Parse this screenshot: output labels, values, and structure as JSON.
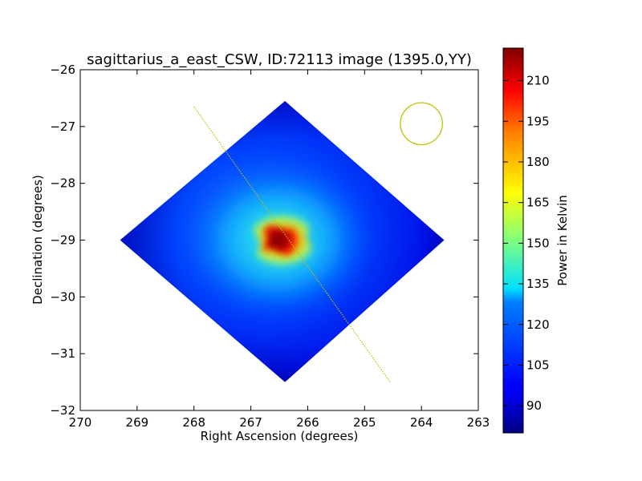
{
  "chart_data": {
    "type": "heatmap",
    "title": "sagittarius_a_east_CSW, ID:72113 image (1395.0,YY)",
    "xlabel": "Right Ascension (degrees)",
    "ylabel": "Declination (degrees)",
    "xlim": [
      270,
      263
    ],
    "ylim": [
      -32,
      -26
    ],
    "x_ticks": [
      "270",
      "269",
      "268",
      "267",
      "266",
      "265",
      "264",
      "263"
    ],
    "y_ticks": [
      "−26",
      "−27",
      "−28",
      "−29",
      "−30",
      "−31",
      "−32"
    ],
    "colorbar": {
      "label": "Power in Kelvin",
      "range": [
        80,
        222
      ],
      "ticks": [
        "90",
        "105",
        "120",
        "135",
        "150",
        "165",
        "180",
        "195",
        "210"
      ],
      "colormap": "jet"
    },
    "map": {
      "footprint_corners": [
        [
          266.4,
          -26.55
        ],
        [
          263.6,
          -29.0
        ],
        [
          266.4,
          -31.5
        ],
        [
          269.3,
          -29.0
        ]
      ],
      "background_level": 88,
      "peak_level": 222,
      "peak_center": [
        266.5,
        -29.0
      ]
    },
    "scan_line": {
      "start": [
        268.0,
        -26.65
      ],
      "end": [
        264.55,
        -31.5
      ],
      "color": "#bfbf00"
    },
    "beam": {
      "center": [
        264.0,
        -26.95
      ],
      "radius_deg": 0.37,
      "color": "#bfbf00"
    }
  }
}
